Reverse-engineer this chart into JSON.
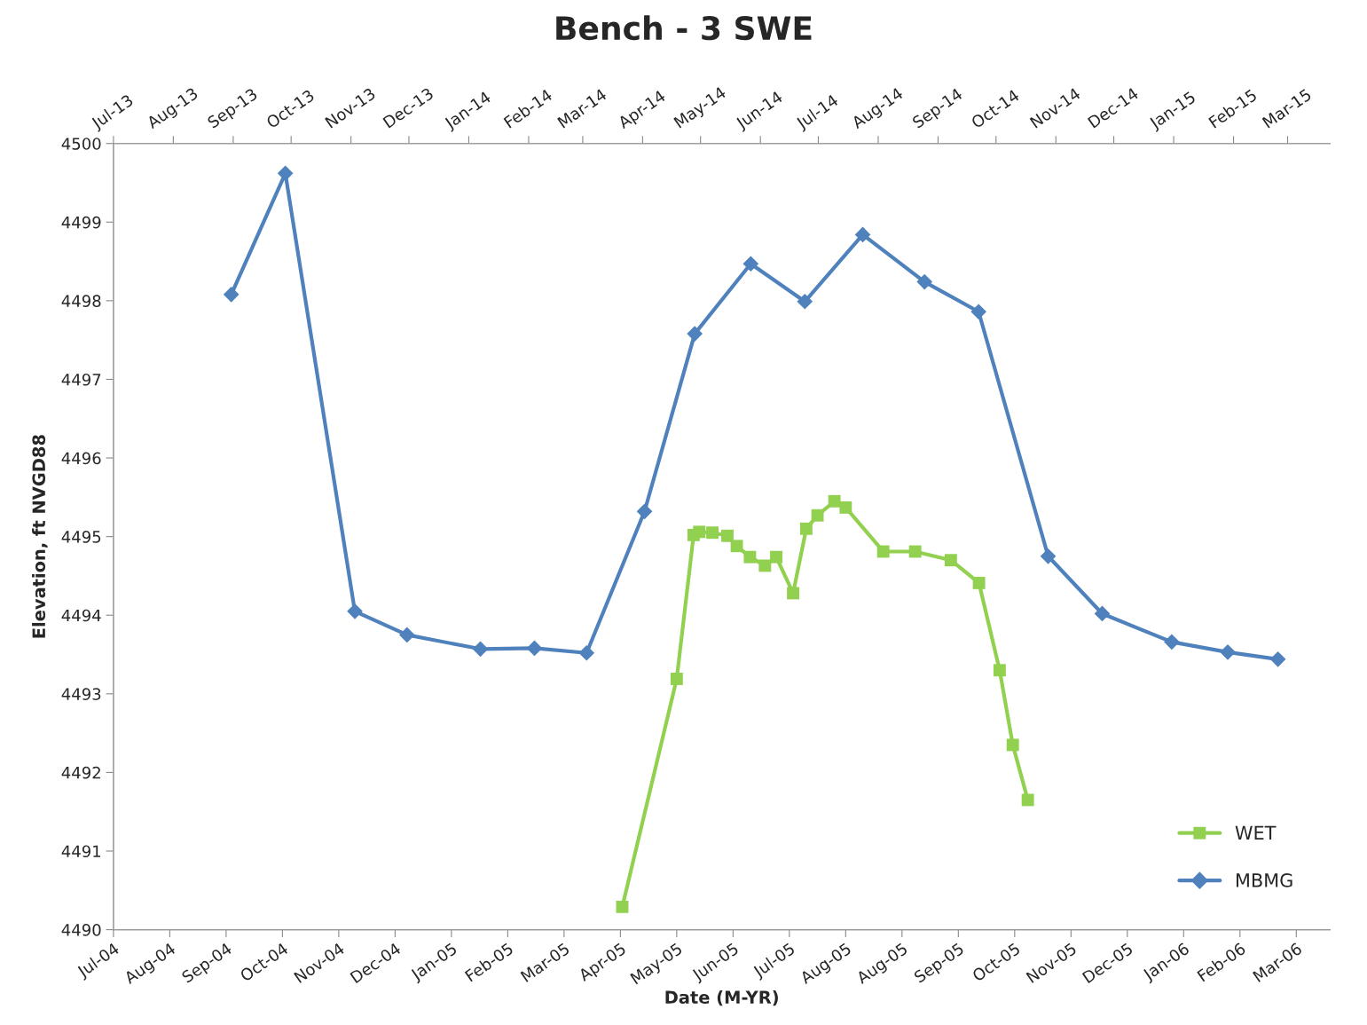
{
  "chart_data": {
    "type": "line",
    "title": "Bench - 3 SWE",
    "xlabel": "Date (M-YR)",
    "ylabel": "Elevation, ft NVGD88",
    "ylim": [
      4490,
      4500
    ],
    "yticks": [
      4490,
      4491,
      4492,
      4493,
      4494,
      4495,
      4496,
      4497,
      4498,
      4499,
      4500
    ],
    "xlim": [
      "2004-07-07",
      "2006-04-16"
    ],
    "xticks": [
      {
        "value": "2004-07-07",
        "label": "Jul-04"
      },
      {
        "value": "2004-08-06",
        "label": "Aug-04"
      },
      {
        "value": "2004-09-05",
        "label": "Sep-04"
      },
      {
        "value": "2004-10-05",
        "label": "Oct-04"
      },
      {
        "value": "2004-11-04",
        "label": "Nov-04"
      },
      {
        "value": "2004-12-04",
        "label": "Dec-04"
      },
      {
        "value": "2005-01-03",
        "label": "Jan-05"
      },
      {
        "value": "2005-02-02",
        "label": "Feb-05"
      },
      {
        "value": "2005-03-04",
        "label": "Mar-05"
      },
      {
        "value": "2005-04-03",
        "label": "Apr-05"
      },
      {
        "value": "2005-05-03",
        "label": "May-05"
      },
      {
        "value": "2005-06-02",
        "label": "Jun-05"
      },
      {
        "value": "2005-07-02",
        "label": "Jul-05"
      },
      {
        "value": "2005-08-01",
        "label": "Aug-05"
      },
      {
        "value": "2005-08-31",
        "label": "Aug-05"
      },
      {
        "value": "2005-09-30",
        "label": "Sep-05"
      },
      {
        "value": "2005-10-30",
        "label": "Oct-05"
      },
      {
        "value": "2005-11-29",
        "label": "Nov-05"
      },
      {
        "value": "2005-12-29",
        "label": "Dec-05"
      },
      {
        "value": "2006-01-28",
        "label": "Jan-06"
      },
      {
        "value": "2006-02-27",
        "label": "Feb-06"
      },
      {
        "value": "2006-03-29",
        "label": "Mar-06"
      }
    ],
    "x2lim": [
      "2013-07-01",
      "2015-03-23"
    ],
    "x2ticks": [
      {
        "value": "2013-07-01",
        "label": "Jul-13"
      },
      {
        "value": "2013-08-01",
        "label": "Aug-13"
      },
      {
        "value": "2013-09-01",
        "label": "Sep-13"
      },
      {
        "value": "2013-10-01",
        "label": "Oct-13"
      },
      {
        "value": "2013-11-01",
        "label": "Nov-13"
      },
      {
        "value": "2013-12-01",
        "label": "Dec-13"
      },
      {
        "value": "2014-01-01",
        "label": "Jan-14"
      },
      {
        "value": "2014-02-01",
        "label": "Feb-14"
      },
      {
        "value": "2014-03-01",
        "label": "Mar-14"
      },
      {
        "value": "2014-04-01",
        "label": "Apr-14"
      },
      {
        "value": "2014-05-01",
        "label": "May-14"
      },
      {
        "value": "2014-06-01",
        "label": "Jun-14"
      },
      {
        "value": "2014-07-01",
        "label": "Jul-14"
      },
      {
        "value": "2014-08-01",
        "label": "Aug-14"
      },
      {
        "value": "2014-09-01",
        "label": "Sep-14"
      },
      {
        "value": "2014-10-01",
        "label": "Oct-14"
      },
      {
        "value": "2014-11-01",
        "label": "Nov-14"
      },
      {
        "value": "2014-12-01",
        "label": "Dec-14"
      },
      {
        "value": "2015-01-01",
        "label": "Jan-15"
      },
      {
        "value": "2015-02-01",
        "label": "Feb-15"
      },
      {
        "value": "2015-03-01",
        "label": "Mar-15"
      }
    ],
    "grid": false,
    "legend": "bottom right",
    "line_style": "solid",
    "series": [
      {
        "name": "WET",
        "color": "#92d050",
        "marker": "square",
        "x": [
          "2005-04-04",
          "2005-05-03",
          "2005-05-12",
          "2005-05-15",
          "2005-05-22",
          "2005-05-30",
          "2005-06-04",
          "2005-06-11",
          "2005-06-19",
          "2005-06-25",
          "2005-07-04",
          "2005-07-11",
          "2005-07-17",
          "2005-07-26",
          "2005-08-01",
          "2005-08-21",
          "2005-09-07",
          "2005-09-26",
          "2005-10-11",
          "2005-10-22",
          "2005-10-29",
          "2005-11-06"
        ],
        "values": [
          4490.29,
          4493.19,
          4495.02,
          4495.06,
          4495.05,
          4495.01,
          4494.88,
          4494.74,
          4494.63,
          4494.74,
          4494.28,
          4495.1,
          4495.27,
          4495.45,
          4495.37,
          4494.81,
          4494.81,
          4494.7,
          4494.41,
          4493.3,
          4492.35,
          4491.65
        ]
      },
      {
        "name": "MBMG",
        "color": "#4f81bd",
        "marker": "diamond",
        "axis": "x2",
        "x": [
          "2013-08-31",
          "2013-09-28",
          "2013-11-03",
          "2013-11-30",
          "2014-01-07",
          "2014-02-04",
          "2014-03-03",
          "2014-04-02",
          "2014-04-28",
          "2014-05-27",
          "2014-06-24",
          "2014-07-24",
          "2014-08-25",
          "2014-09-22",
          "2014-10-28",
          "2014-11-25",
          "2014-12-31",
          "2015-01-29",
          "2015-02-24"
        ],
        "values": [
          4498.08,
          4499.62,
          4494.05,
          4493.75,
          4493.57,
          4493.58,
          4493.52,
          4495.32,
          4497.58,
          4498.47,
          4497.99,
          4498.84,
          4498.24,
          4497.86,
          4494.75,
          4494.02,
          4493.66,
          4493.53,
          4493.44
        ]
      }
    ]
  }
}
